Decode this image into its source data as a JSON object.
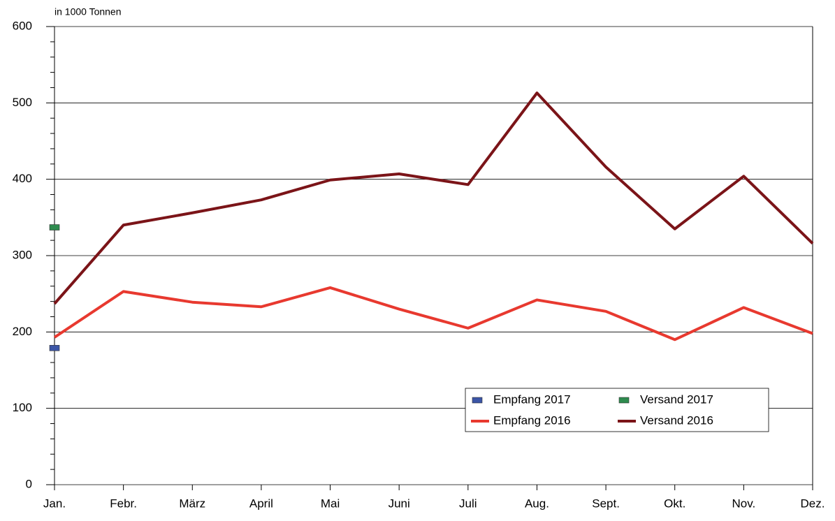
{
  "chart_data": {
    "type": "line",
    "axis_label": "in 1000 Tonnen",
    "categories": [
      "Jan.",
      "Febr.",
      "März",
      "April",
      "Mai",
      "Juni",
      "Juli",
      "Aug.",
      "Sept.",
      "Okt.",
      "Nov.",
      "Dez."
    ],
    "series": [
      {
        "name": "Empfang 2017",
        "color": "#3b55a6",
        "marker": true,
        "values": [
          179,
          null,
          null,
          null,
          null,
          null,
          null,
          null,
          null,
          null,
          null,
          null
        ]
      },
      {
        "name": "Versand 2017",
        "color": "#2e8b4e",
        "marker": true,
        "values": [
          337,
          null,
          null,
          null,
          null,
          null,
          null,
          null,
          null,
          null,
          null,
          null
        ]
      },
      {
        "name": "Empfang 2016",
        "color": "#e8392f",
        "marker": false,
        "values": [
          193,
          253,
          239,
          233,
          258,
          230,
          205,
          242,
          227,
          190,
          232,
          198
        ]
      },
      {
        "name": "Versand 2016",
        "color": "#7b1418",
        "marker": false,
        "values": [
          237,
          340,
          356,
          373,
          399,
          407,
          393,
          513,
          416,
          335,
          404,
          316
        ]
      }
    ],
    "ylim": [
      0,
      600
    ],
    "yticks": [
      0,
      100,
      200,
      300,
      400,
      500,
      600
    ],
    "grid": true,
    "legend": "lower right"
  }
}
